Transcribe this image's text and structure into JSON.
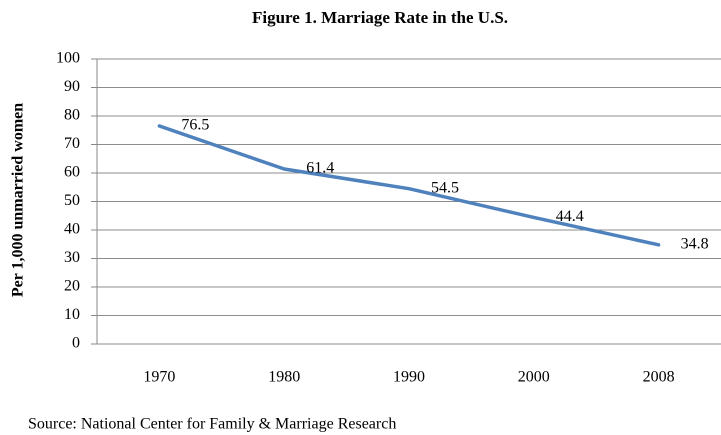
{
  "chart_data": {
    "type": "line",
    "title": "Figure 1. Marriage Rate in the U.S.",
    "y_label": "Per 1,000 unmarried women",
    "source": "Source: National Center for Family & Marriage Research",
    "categories": [
      "1970",
      "1980",
      "1990",
      "2000",
      "2008"
    ],
    "values": [
      76.5,
      61.4,
      54.5,
      44.4,
      34.8
    ],
    "color": "#4f81bd",
    "ylim": [
      0,
      100
    ],
    "yticks": [
      0,
      10,
      20,
      30,
      40,
      50,
      60,
      70,
      80,
      90,
      100
    ],
    "grid": true
  }
}
